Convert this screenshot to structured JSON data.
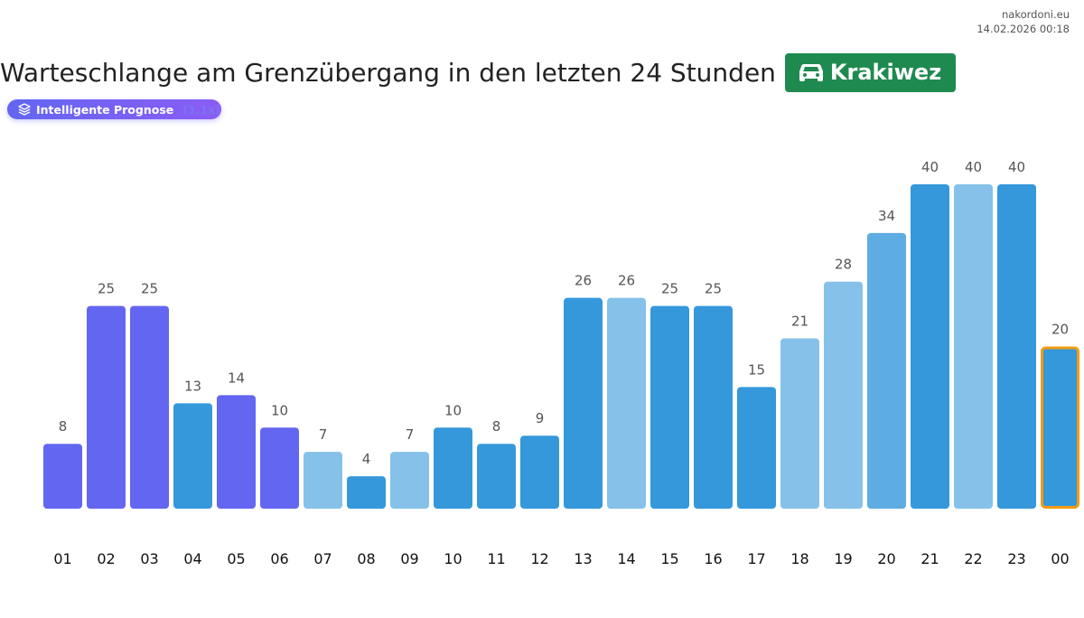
{
  "meta": {
    "site": "nakordoni.eu",
    "timestamp": "14.02.2026 00:18"
  },
  "header": {
    "title": "Warteschlange am Grenzübergang in den letzten 24 Stunden",
    "crossing_icon": "car-icon",
    "crossing_name": "Krakiwez",
    "crossing_color": "#1e8a4f"
  },
  "prognose_badge": {
    "icon": "layers-icon",
    "label": "Intelligente Prognose",
    "factor": "(1.1x)"
  },
  "colors": {
    "forecast": "#6366f1",
    "dark": "#3498db",
    "mid": "#5dade2",
    "light": "#85c1e9",
    "current_outline": "#f39c12"
  },
  "chart_data": {
    "type": "bar",
    "title": "Warteschlange am Grenzübergang in den letzten 24 Stunden",
    "xlabel": "",
    "ylabel": "",
    "ylim": [
      0,
      40
    ],
    "grid": false,
    "categories": [
      "01",
      "02",
      "03",
      "04",
      "05",
      "06",
      "07",
      "08",
      "09",
      "10",
      "11",
      "12",
      "13",
      "14",
      "15",
      "16",
      "17",
      "18",
      "19",
      "20",
      "21",
      "22",
      "23",
      "00"
    ],
    "values": [
      8,
      25,
      25,
      13,
      14,
      10,
      7,
      4,
      7,
      10,
      8,
      9,
      26,
      26,
      25,
      25,
      15,
      21,
      28,
      34,
      40,
      40,
      40,
      20
    ],
    "bar_styles": [
      "forecast",
      "forecast",
      "forecast",
      "dark",
      "forecast",
      "forecast",
      "light",
      "dark",
      "light",
      "dark",
      "dark",
      "dark",
      "dark",
      "light",
      "dark",
      "dark",
      "dark",
      "light",
      "light",
      "mid",
      "dark",
      "light",
      "dark",
      "dark"
    ],
    "highlighted_index": 23,
    "data_labels": true
  }
}
